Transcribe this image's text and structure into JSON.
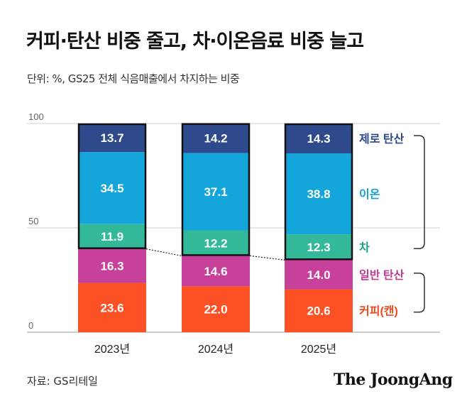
{
  "title": "커피·탄산 비중 줄고, 차·이온음료 비중 늘고",
  "subtitle": "단위: %, GS25 전체 식음매출에서 차지하는 비중",
  "source": "자료: GS리테일",
  "logo": "The JoongAng",
  "chart_data": {
    "type": "bar",
    "stacked": true,
    "categories": [
      "2023년",
      "2024년",
      "2025년"
    ],
    "series": [
      {
        "name": "커피(캔)",
        "values": [
          23.6,
          22.0,
          20.6
        ],
        "color": "#fb5124",
        "label_color": "#f04a1f"
      },
      {
        "name": "일반 탄산",
        "values": [
          16.3,
          14.6,
          14.0
        ],
        "color": "#c7409a",
        "label_color": "#c23b93"
      },
      {
        "name": "차",
        "values": [
          11.9,
          12.2,
          12.3
        ],
        "color": "#34b89a",
        "label_color": "#1aa386"
      },
      {
        "name": "이온",
        "values": [
          34.5,
          37.1,
          38.8
        ],
        "color": "#14a6da",
        "label_color": "#14a1d4"
      },
      {
        "name": "제로 탄산",
        "values": [
          13.7,
          14.2,
          14.3
        ],
        "color": "#2e4a8c",
        "label_color": "#2b4a8a"
      }
    ],
    "ylim": [
      0,
      100
    ],
    "yticks": [
      0,
      50,
      100
    ],
    "grid": true,
    "legend": "right",
    "highlight_series": [
      "차",
      "이온",
      "제로 탄산"
    ]
  }
}
